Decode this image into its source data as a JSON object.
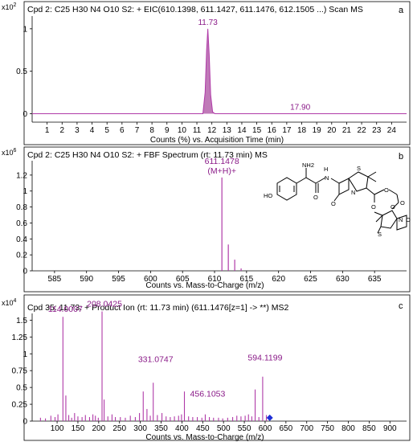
{
  "colors": {
    "trace": "#b03aa8",
    "fill": "#c07ab8",
    "annotation": "#8a1a88",
    "axis": "#000000",
    "marker": "#1f2fd6"
  },
  "chart_data": [
    {
      "type": "area",
      "panel_label": "a",
      "title": "Cpd 2: C25 H30 N4 O10 S2: + EIC(610.1398, 611.1427, 611.1476, 612.1505 ...) Scan MS",
      "exponent_label": "x10 2",
      "xlabel": "Counts (%) vs. Acquisition Time (min)",
      "xlim": [
        0,
        25
      ],
      "ylim": [
        -0.1,
        1.15
      ],
      "x_ticks": [
        "1",
        "2",
        "3",
        "4",
        "5",
        "6",
        "7",
        "8",
        "9",
        "10",
        "11",
        "12",
        "13",
        "14",
        "15",
        "16",
        "17",
        "18",
        "19",
        "20",
        "21",
        "22",
        "23",
        "24"
      ],
      "y_ticks": [
        "0",
        "0.5",
        "1"
      ],
      "points": [
        {
          "x": 0.0,
          "y": 0
        },
        {
          "x": 11.4,
          "y": 0
        },
        {
          "x": 11.55,
          "y": 0.25
        },
        {
          "x": 11.65,
          "y": 0.75
        },
        {
          "x": 11.73,
          "y": 1.0
        },
        {
          "x": 11.82,
          "y": 0.7
        },
        {
          "x": 11.92,
          "y": 0.22
        },
        {
          "x": 12.05,
          "y": 0.02
        },
        {
          "x": 12.2,
          "y": 0
        },
        {
          "x": 25.0,
          "y": 0
        }
      ],
      "annotations": [
        {
          "x": 11.73,
          "y": 1.0,
          "text": "11.73"
        },
        {
          "x": 17.9,
          "y": 0.0,
          "text": "17.90"
        }
      ]
    },
    {
      "type": "bar",
      "panel_label": "b",
      "title": "Cpd 2: C25 H30 N4 O10 S2: + FBF Spectrum (rt: 11.73 min) MS",
      "exponent_label": "x10 6",
      "xlabel": "Counts vs. Mass-to-Charge (m/z)",
      "xlim": [
        581.5,
        640
      ],
      "ylim": [
        0,
        1.38
      ],
      "x_ticks": [
        "585",
        "590",
        "595",
        "600",
        "605",
        "610",
        "615",
        "620",
        "625",
        "630",
        "635"
      ],
      "y_ticks": [
        "0",
        "0.2",
        "0.4",
        "0.6",
        "0.8",
        "1",
        "1.2"
      ],
      "peaks": [
        {
          "x": 611.1478,
          "y": 1.17
        },
        {
          "x": 612.15,
          "y": 0.33
        },
        {
          "x": 613.15,
          "y": 0.14
        },
        {
          "x": 614.15,
          "y": 0.03
        }
      ],
      "annotations": [
        {
          "x": 611.1478,
          "y": 1.17,
          "lines": [
            "611.1478",
            "(M+H)+"
          ]
        }
      ]
    },
    {
      "type": "bar",
      "panel_label": "c",
      "title": "Cpd 35: 11.73: + Product Ion (rt: 11.73 min) (611.1476[z=1] -> **) MS2",
      "exponent_label": "x10 4",
      "xlabel": "Counts vs. Mass-to-Charge (m/z)",
      "xlim": [
        40,
        940
      ],
      "ylim": [
        0,
        1.6
      ],
      "x_ticks": [
        "100",
        "150",
        "200",
        "250",
        "300",
        "350",
        "400",
        "450",
        "500",
        "550",
        "600",
        "650",
        "700",
        "750",
        "800",
        "850",
        "900"
      ],
      "y_ticks": [
        "0",
        "0.25",
        "0.5",
        "0.75",
        "1",
        "1.25",
        "1.5"
      ],
      "peaks": [
        {
          "x": 60,
          "y": 0.05
        },
        {
          "x": 72,
          "y": 0.04
        },
        {
          "x": 85,
          "y": 0.08
        },
        {
          "x": 95,
          "y": 0.06
        },
        {
          "x": 102,
          "y": 0.1
        },
        {
          "x": 114.0007,
          "y": 1.55
        },
        {
          "x": 121,
          "y": 0.38
        },
        {
          "x": 128,
          "y": 0.09
        },
        {
          "x": 135,
          "y": 0.05
        },
        {
          "x": 142,
          "y": 0.12
        },
        {
          "x": 150,
          "y": 0.07
        },
        {
          "x": 160,
          "y": 0.06
        },
        {
          "x": 168,
          "y": 0.09
        },
        {
          "x": 178,
          "y": 0.06
        },
        {
          "x": 186,
          "y": 0.1
        },
        {
          "x": 192,
          "y": 0.08
        },
        {
          "x": 199,
          "y": 0.05
        },
        {
          "x": 208.0425,
          "y": 1.63
        },
        {
          "x": 213,
          "y": 0.32
        },
        {
          "x": 222,
          "y": 0.07
        },
        {
          "x": 232,
          "y": 0.1
        },
        {
          "x": 240,
          "y": 0.06
        },
        {
          "x": 252,
          "y": 0.06
        },
        {
          "x": 264,
          "y": 0.05
        },
        {
          "x": 276,
          "y": 0.08
        },
        {
          "x": 288,
          "y": 0.06
        },
        {
          "x": 298,
          "y": 0.12
        },
        {
          "x": 307,
          "y": 0.44
        },
        {
          "x": 316,
          "y": 0.18
        },
        {
          "x": 324,
          "y": 0.08
        },
        {
          "x": 331.0747,
          "y": 0.57
        },
        {
          "x": 341,
          "y": 0.09
        },
        {
          "x": 352,
          "y": 0.12
        },
        {
          "x": 362,
          "y": 0.07
        },
        {
          "x": 372,
          "y": 0.06
        },
        {
          "x": 382,
          "y": 0.07
        },
        {
          "x": 392,
          "y": 0.08
        },
        {
          "x": 399,
          "y": 0.1
        },
        {
          "x": 406,
          "y": 0.44
        },
        {
          "x": 416,
          "y": 0.07
        },
        {
          "x": 426,
          "y": 0.06
        },
        {
          "x": 437,
          "y": 0.06
        },
        {
          "x": 448,
          "y": 0.05
        },
        {
          "x": 456.1053,
          "y": 0.1
        },
        {
          "x": 466,
          "y": 0.06
        },
        {
          "x": 476,
          "y": 0.05
        },
        {
          "x": 488,
          "y": 0.05
        },
        {
          "x": 498,
          "y": 0.04
        },
        {
          "x": 510,
          "y": 0.05
        },
        {
          "x": 522,
          "y": 0.06
        },
        {
          "x": 532,
          "y": 0.08
        },
        {
          "x": 542,
          "y": 0.07
        },
        {
          "x": 552,
          "y": 0.08
        },
        {
          "x": 560,
          "y": 0.1
        },
        {
          "x": 568,
          "y": 0.07
        },
        {
          "x": 576,
          "y": 0.47
        },
        {
          "x": 585,
          "y": 0.06
        },
        {
          "x": 594.1199,
          "y": 0.66
        },
        {
          "x": 603,
          "y": 0.09
        }
      ],
      "precursor_marker": {
        "x": 611.1476,
        "y": 0.05
      },
      "annotations": [
        {
          "x": 114.0007,
          "y": 1.55,
          "text": "114.0007"
        },
        {
          "x": 208.0425,
          "y": 1.63,
          "text": "208.0425"
        },
        {
          "x": 331.0747,
          "y": 0.57,
          "text": "331.0747"
        },
        {
          "x": 456.1053,
          "y": 0.1,
          "text": "456.1053"
        },
        {
          "x": 594.1199,
          "y": 0.66,
          "text": "594.1199"
        }
      ]
    }
  ],
  "structure": {
    "atom_labels": [
      "NH2",
      "H",
      "N",
      "S",
      "HO",
      "O",
      "N",
      "O",
      "O",
      "O",
      "O",
      "O",
      "N",
      "S",
      "O"
    ]
  }
}
